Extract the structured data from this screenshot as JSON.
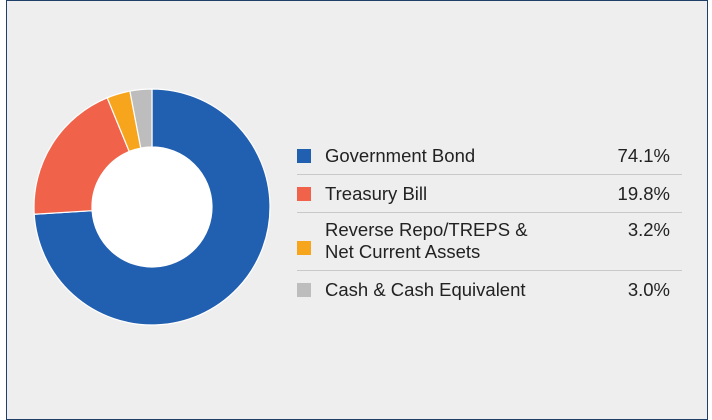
{
  "chart_data": {
    "type": "pie",
    "donut": true,
    "categories": [
      "Government Bond",
      "Treasury Bill",
      "Reverse Repo/TREPS &\nNet Current Assets",
      "Cash & Cash Equivalent"
    ],
    "values": [
      74.1,
      19.8,
      3.2,
      3.0
    ],
    "value_labels": [
      "74.1%",
      "19.8%",
      "3.2%",
      "3.0%"
    ],
    "colors": [
      "#215fb0",
      "#f0634a",
      "#f8a51e",
      "#bdbdbd"
    ],
    "legend_position": "right",
    "title": ""
  }
}
